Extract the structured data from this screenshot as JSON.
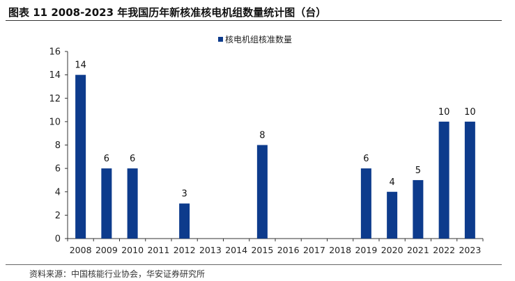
{
  "header": {
    "title": "图表 11   2008-2023 年我国历年新核准核电机组数量统计图（台）"
  },
  "footer": {
    "source": "资料来源：中国核能行业协会，华安证券研究所"
  },
  "chart_data": {
    "type": "bar",
    "categories": [
      "2008",
      "2009",
      "2010",
      "2011",
      "2012",
      "2013",
      "2014",
      "2015",
      "2016",
      "2017",
      "2018",
      "2019",
      "2020",
      "2021",
      "2022",
      "2023"
    ],
    "series": [
      {
        "name": "核电机组核准数量",
        "values": [
          14,
          6,
          6,
          0,
          3,
          0,
          0,
          8,
          0,
          0,
          0,
          6,
          4,
          5,
          10,
          10
        ],
        "color": "#0d3b8c"
      }
    ],
    "data_labels": [
      14,
      6,
      6,
      null,
      3,
      null,
      null,
      8,
      null,
      null,
      null,
      6,
      4,
      5,
      10,
      10
    ],
    "yticks": [
      0,
      2,
      4,
      6,
      8,
      10,
      12,
      14,
      16
    ],
    "ylim": [
      0,
      16
    ],
    "grid": false,
    "legend": "top-center",
    "xlabel": "",
    "ylabel": ""
  }
}
